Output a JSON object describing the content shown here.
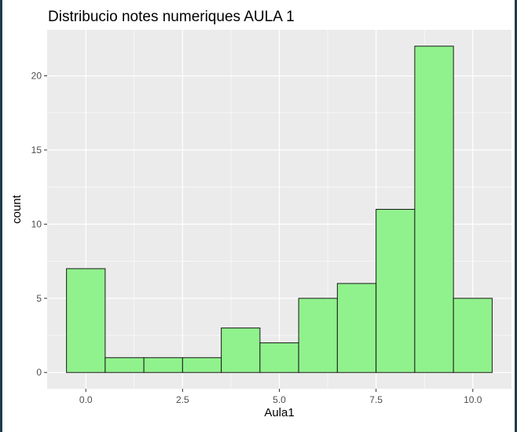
{
  "chart_data": {
    "type": "bar",
    "title": "Distribucio notes numeriques AULA 1",
    "xlabel": "Aula1",
    "ylabel": "count",
    "bins": [
      {
        "center": 0.0,
        "count": 7
      },
      {
        "center": 1.0,
        "count": 1
      },
      {
        "center": 2.0,
        "count": 1
      },
      {
        "center": 3.0,
        "count": 1
      },
      {
        "center": 4.0,
        "count": 3
      },
      {
        "center": 5.0,
        "count": 2
      },
      {
        "center": 6.0,
        "count": 5
      },
      {
        "center": 7.0,
        "count": 6
      },
      {
        "center": 8.0,
        "count": 11
      },
      {
        "center": 9.0,
        "count": 22
      },
      {
        "center": 10.0,
        "count": 5
      }
    ],
    "bin_width": 1,
    "xlim": [
      -1.0,
      11.0
    ],
    "ylim": [
      -1.1,
      23.1
    ],
    "x_ticks": [
      0.0,
      2.5,
      5.0,
      7.5,
      10.0
    ],
    "x_tick_labels": [
      "0.0",
      "2.5",
      "5.0",
      "7.5",
      "10.0"
    ],
    "y_ticks": [
      0,
      5,
      10,
      15,
      20
    ],
    "y_tick_labels": [
      "0",
      "5",
      "10",
      "15",
      "20"
    ],
    "grid": true,
    "bar_fill": "#90f28c",
    "bar_stroke": "#1a1a1a",
    "panel_background": "#ebebeb",
    "grid_color": "#ffffff"
  }
}
